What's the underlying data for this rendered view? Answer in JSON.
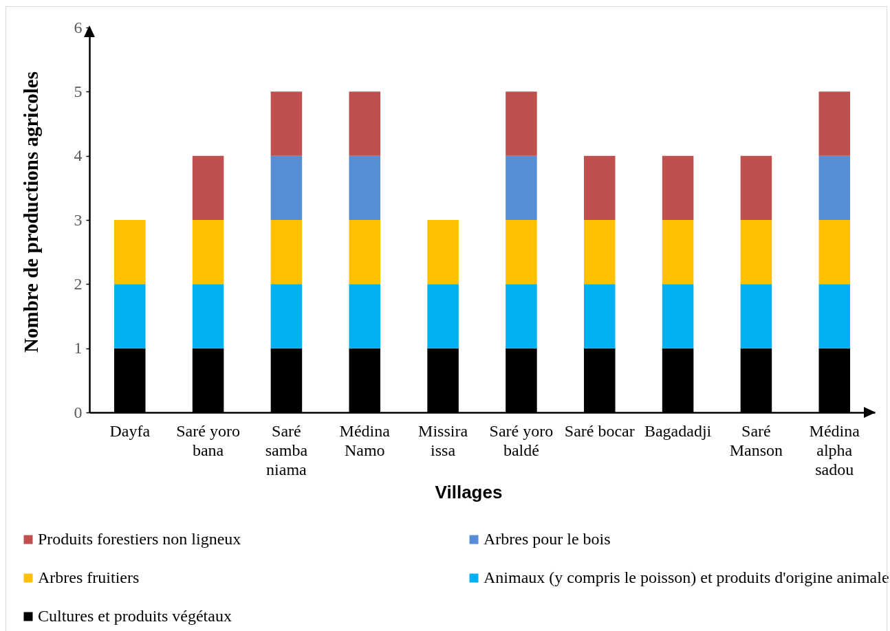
{
  "chart_data": {
    "type": "bar",
    "stacked": true,
    "xlabel": "Villages",
    "ylabel": "Nombre de productions agricoles",
    "categories": [
      "Dayfa",
      "Saré yoro bana",
      "Saré samba niama",
      "Médina Namo",
      "Missira issa",
      "Saré yoro baldé",
      "Saré bocar",
      "Bagadadji",
      "Saré Manson",
      "Médina alpha sadou"
    ],
    "series": [
      {
        "name": "Cultures et produits végétaux",
        "color": "#000000",
        "values": [
          1,
          1,
          1,
          1,
          1,
          1,
          1,
          1,
          1,
          1
        ]
      },
      {
        "name": "Animaux (y compris le poisson) et produits d'origine animale",
        "color": "#00b0f0",
        "values": [
          1,
          1,
          1,
          1,
          1,
          1,
          1,
          1,
          1,
          1
        ]
      },
      {
        "name": "Arbres fruitiers",
        "color": "#ffc000",
        "values": [
          1,
          1,
          1,
          1,
          1,
          1,
          1,
          1,
          1,
          1
        ]
      },
      {
        "name": "Arbres pour le bois",
        "color": "#558ed5",
        "values": [
          0,
          0,
          1,
          1,
          0,
          1,
          0,
          0,
          0,
          1
        ]
      },
      {
        "name": "Produits forestiers non ligneux",
        "color": "#c0504d",
        "values": [
          0,
          1,
          1,
          1,
          0,
          1,
          1,
          1,
          1,
          1
        ]
      }
    ],
    "ylim": [
      0,
      6
    ],
    "yticks": [
      0,
      1,
      2,
      3,
      4,
      5,
      6
    ],
    "grid": false,
    "legend": "bottom"
  }
}
